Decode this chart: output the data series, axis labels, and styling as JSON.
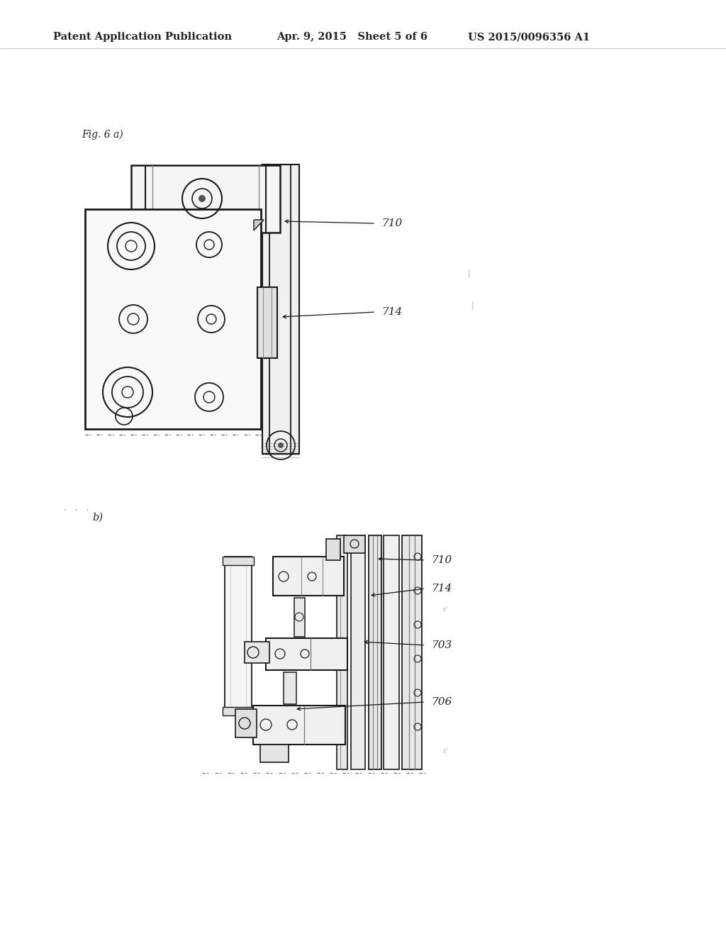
{
  "background_color": "#ffffff",
  "header": {
    "left_text": "Patent Application Publication",
    "center_text": "Apr. 9, 2015   Sheet 5 of 6",
    "right_text": "US 2015/0096356 A1",
    "fontsize": 10.5
  },
  "fig_a_label": "Fig. 6 a)",
  "fig_b_label": "b)",
  "label_color": "#222222",
  "line_color": "#1a1a1a"
}
